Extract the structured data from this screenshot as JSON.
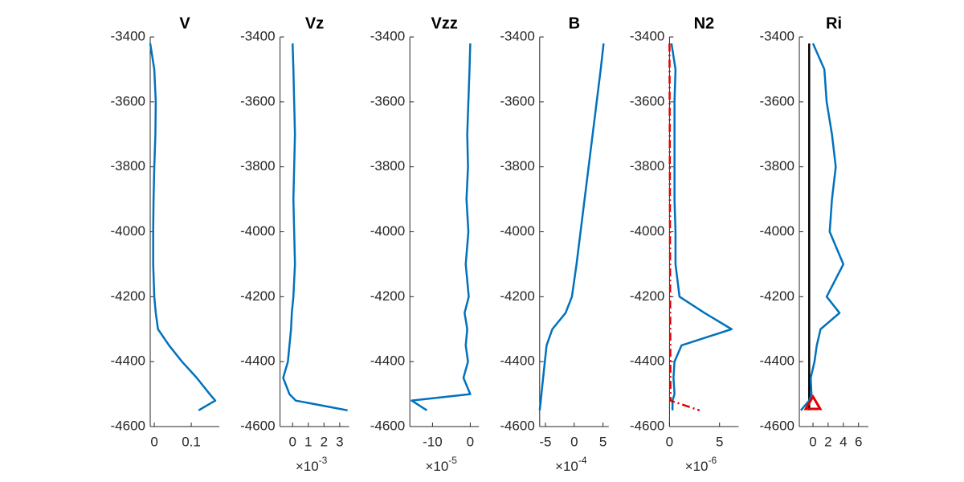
{
  "chart_data": [
    {
      "type": "line",
      "title": "V",
      "xlim": [
        -0.011,
        0.176
      ],
      "xticks": [
        0,
        0.1
      ],
      "ylim": [
        -4600,
        -3400
      ],
      "yticks": [
        -4600,
        -4400,
        -4200,
        -4000,
        -3800,
        -3600,
        -3400
      ],
      "series": [
        {
          "color": "#0072bd",
          "x": [
            -0.011,
            0.0,
            0.004,
            0.003,
            0.0,
            -0.002,
            -0.003,
            -0.003,
            0.0,
            0.004,
            0.01,
            0.04,
            0.075,
            0.115,
            0.15,
            0.165,
            0.12
          ],
          "y": [
            -3420,
            -3500,
            -3600,
            -3700,
            -3800,
            -3900,
            -4000,
            -4100,
            -4200,
            -4250,
            -4300,
            -4350,
            -4400,
            -4450,
            -4500,
            -4520,
            -4550
          ]
        }
      ]
    },
    {
      "type": "line",
      "title": "Vz",
      "xlim": [
        -0.8,
        3.6
      ],
      "xticks": [
        0,
        1,
        2,
        3
      ],
      "x_multiplier": "×10",
      "x_exponent": "-3",
      "ylim": [
        -4600,
        -3400
      ],
      "yticks": [
        -4600,
        -4400,
        -4200,
        -4000,
        -3800,
        -3600,
        -3400
      ],
      "series": [
        {
          "color": "#0072bd",
          "x": [
            0,
            0.05,
            0.1,
            0.15,
            0.1,
            0.05,
            0.1,
            0.15,
            0.05,
            -0.05,
            -0.1,
            -0.2,
            -0.3,
            -0.6,
            -0.2,
            0.2,
            3.5
          ],
          "y": [
            -3420,
            -3500,
            -3600,
            -3700,
            -3800,
            -3900,
            -4000,
            -4100,
            -4200,
            -4250,
            -4300,
            -4350,
            -4400,
            -4450,
            -4500,
            -4520,
            -4550
          ]
        }
      ]
    },
    {
      "type": "line",
      "title": "Vzz",
      "xlim": [
        -16,
        2.3
      ],
      "xticks": [
        -10,
        0
      ],
      "x_multiplier": "×10",
      "x_exponent": "-5",
      "ylim": [
        -4600,
        -3400
      ],
      "yticks": [
        -4600,
        -4400,
        -4200,
        -4000,
        -3800,
        -3600,
        -3400
      ],
      "series": [
        {
          "color": "#0072bd",
          "x": [
            0,
            -0.2,
            -0.5,
            -0.8,
            -0.6,
            -1,
            -0.5,
            -1.2,
            -0.4,
            -1.5,
            -0.8,
            -1.2,
            -0.6,
            -1.8,
            0,
            -15.5,
            -11.5
          ],
          "y": [
            -3420,
            -3500,
            -3600,
            -3700,
            -3800,
            -3900,
            -4000,
            -4100,
            -4200,
            -4250,
            -4300,
            -4350,
            -4400,
            -4450,
            -4500,
            -4520,
            -4550
          ]
        }
      ]
    },
    {
      "type": "line",
      "title": "B",
      "xlim": [
        -6,
        6
      ],
      "xticks": [
        -5,
        0,
        5
      ],
      "x_multiplier": "×10",
      "x_exponent": "-4",
      "ylim": [
        -4600,
        -3400
      ],
      "yticks": [
        -4600,
        -4400,
        -4200,
        -4000,
        -3800,
        -3600,
        -3400
      ],
      "series": [
        {
          "color": "#0072bd",
          "x": [
            5.1,
            4.6,
            3.9,
            3.2,
            2.5,
            1.8,
            1.1,
            0.4,
            -0.4,
            -1.5,
            -3.8,
            -4.8,
            -5.1,
            -5.4,
            -5.7,
            -5.8,
            -6
          ],
          "y": [
            -3420,
            -3500,
            -3600,
            -3700,
            -3800,
            -3900,
            -4000,
            -4100,
            -4200,
            -4250,
            -4300,
            -4350,
            -4400,
            -4450,
            -4500,
            -4520,
            -4550
          ]
        }
      ]
    },
    {
      "type": "line",
      "title": "N2",
      "xlim": [
        0,
        6.9
      ],
      "xticks": [
        0,
        5
      ],
      "x_multiplier": "×10",
      "x_exponent": "-6",
      "ylim": [
        -4600,
        -3400
      ],
      "yticks": [
        -4600,
        -4400,
        -4200,
        -4000,
        -3800,
        -3600,
        -3400
      ],
      "series": [
        {
          "color": "#0072bd",
          "x": [
            0.2,
            0.6,
            0.5,
            0.5,
            0.5,
            0.5,
            0.6,
            0.6,
            1.0,
            3.5,
            6.2,
            1.2,
            0.5,
            0.4,
            0.5,
            0.3,
            0.3
          ],
          "y": [
            -3420,
            -3500,
            -3600,
            -3700,
            -3800,
            -3900,
            -4000,
            -4100,
            -4200,
            -4250,
            -4300,
            -4350,
            -4400,
            -4450,
            -4500,
            -4520,
            -4550
          ]
        },
        {
          "color": "#e00000",
          "line_style": "dashdot",
          "x": [
            0,
            0.1,
            3
          ],
          "y": [
            -3420,
            -4520,
            -4550
          ]
        }
      ]
    },
    {
      "type": "line",
      "title": "Ri",
      "xlim": [
        -1.8,
        7.3
      ],
      "xticks": [
        0,
        2,
        4,
        6
      ],
      "ylim": [
        -4600,
        -3400
      ],
      "yticks": [
        -4600,
        -4400,
        -4200,
        -4000,
        -3800,
        -3600,
        -3400
      ],
      "series": [
        {
          "color": "#000000",
          "x": [
            -0.5,
            -0.5
          ],
          "y": [
            -3420,
            -4550
          ]
        },
        {
          "color": "#0072bd",
          "x": [
            0,
            1.5,
            1.8,
            2.5,
            3,
            2.5,
            2.2,
            4,
            1.8,
            3.5,
            1,
            0.5,
            0.2,
            -0.3,
            -0.2,
            -0.5,
            -1.6
          ],
          "y": [
            -3420,
            -3500,
            -3600,
            -3700,
            -3800,
            -3900,
            -4000,
            -4100,
            -4200,
            -4250,
            -4300,
            -4350,
            -4400,
            -4450,
            -4500,
            -4520,
            -4550
          ]
        },
        {
          "color": "#e00000",
          "marker": "triangle",
          "x": [
            0
          ],
          "y": [
            -4530
          ]
        }
      ]
    }
  ]
}
